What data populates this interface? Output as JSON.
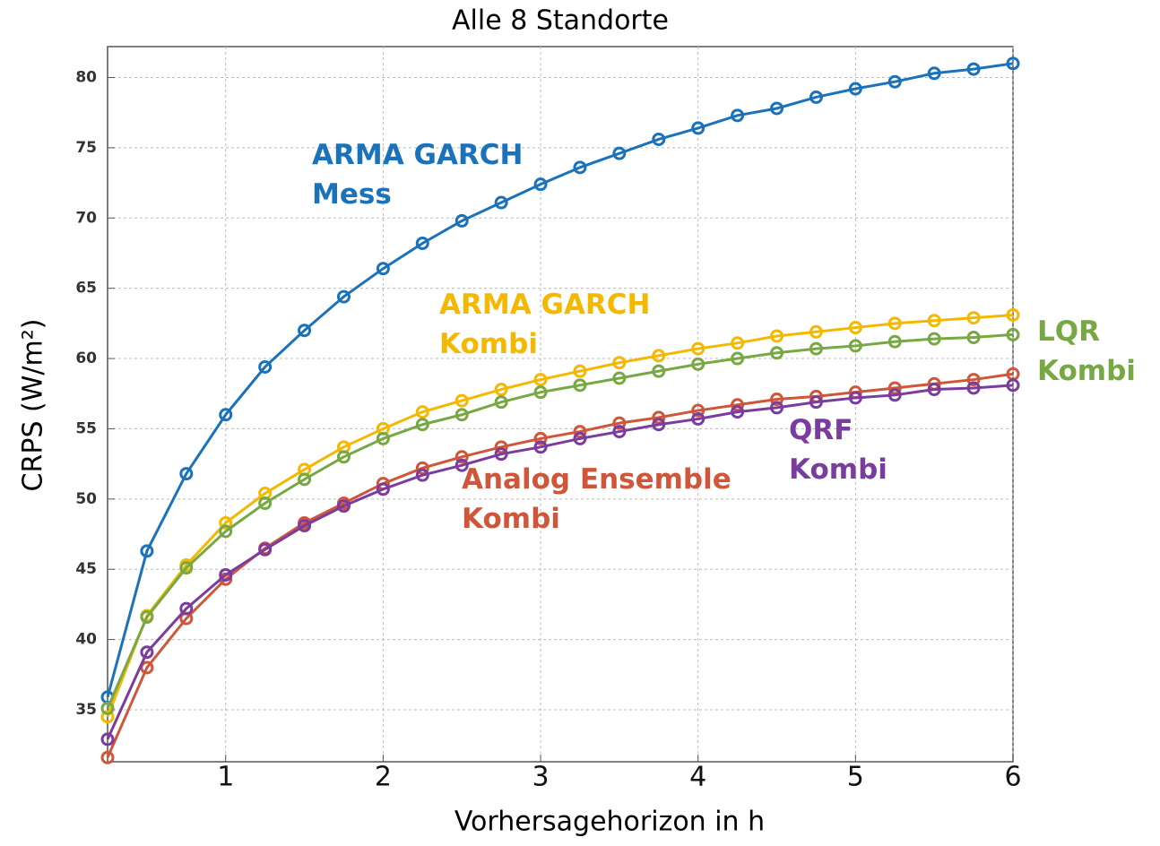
{
  "chart_data": {
    "type": "line",
    "title": "Alle 8 Standorte",
    "x_label": "Vorhersagehorizon in h",
    "y_label": "CRPS (W/m²)",
    "x": [
      0.25,
      0.5,
      0.75,
      1,
      1.25,
      1.5,
      1.75,
      2,
      2.25,
      2.5,
      2.75,
      3,
      3.25,
      3.5,
      3.75,
      4,
      4.25,
      4.5,
      4.75,
      5,
      5.25,
      5.5,
      5.75,
      6
    ],
    "series": [
      {
        "name": [
          "ARMA GARCH",
          "Mess"
        ],
        "color": "#1a72bb",
        "values": [
          35.9,
          46.3,
          51.8,
          56.0,
          59.4,
          62.0,
          64.4,
          66.4,
          68.2,
          69.8,
          71.1,
          72.4,
          73.6,
          74.6,
          75.6,
          76.4,
          77.3,
          77.8,
          78.6,
          79.2,
          79.7,
          80.3,
          80.6,
          81.0
        ]
      },
      {
        "name": [
          "ARMA GARCH",
          "Kombi"
        ],
        "color": "#f5b800",
        "values": [
          34.5,
          41.7,
          45.3,
          48.3,
          50.4,
          52.1,
          53.7,
          55.0,
          56.2,
          57.0,
          57.8,
          58.5,
          59.1,
          59.7,
          60.2,
          60.7,
          61.1,
          61.6,
          61.9,
          62.2,
          62.5,
          62.7,
          62.9,
          63.1
        ]
      },
      {
        "name": [
          "LQR",
          "Kombi"
        ],
        "color": "#77a843",
        "values": [
          35.1,
          41.6,
          45.1,
          47.7,
          49.7,
          51.4,
          53.0,
          54.3,
          55.3,
          56.0,
          56.9,
          57.6,
          58.1,
          58.6,
          59.1,
          59.6,
          60.0,
          60.4,
          60.7,
          60.9,
          61.2,
          61.4,
          61.5,
          61.7
        ]
      },
      {
        "name": [
          "Analog Ensemble",
          "Kombi"
        ],
        "color": "#d0563a",
        "values": [
          31.6,
          38.0,
          41.5,
          44.3,
          46.5,
          48.3,
          49.7,
          51.1,
          52.2,
          53.0,
          53.7,
          54.3,
          54.8,
          55.4,
          55.8,
          56.3,
          56.7,
          57.1,
          57.3,
          57.6,
          57.9,
          58.2,
          58.5,
          58.9
        ]
      },
      {
        "name": [
          "QRF",
          "Kombi"
        ],
        "color": "#7a3c9e",
        "values": [
          32.9,
          39.1,
          42.2,
          44.6,
          46.4,
          48.1,
          49.5,
          50.7,
          51.7,
          52.4,
          53.2,
          53.7,
          54.3,
          54.8,
          55.3,
          55.7,
          56.2,
          56.5,
          56.9,
          57.2,
          57.4,
          57.8,
          57.9,
          58.1
        ]
      }
    ],
    "xlim": [
      0.25,
      6
    ],
    "ylim": [
      31.3,
      82.2
    ],
    "xticks": [
      1,
      2,
      3,
      4,
      5,
      6
    ],
    "yticks": [
      35,
      40,
      45,
      50,
      55,
      60,
      65,
      70,
      75,
      80
    ],
    "grid": true
  }
}
